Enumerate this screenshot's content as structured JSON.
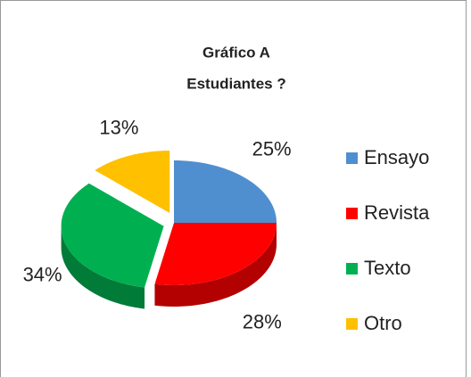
{
  "chart_data": {
    "type": "pie3d",
    "title": "Gráfico A",
    "subtitle": "Estudiantes ?",
    "categories": [
      "Ensayo",
      "Revista",
      "Texto",
      "Otro"
    ],
    "series": [
      {
        "name": "Estudiantes",
        "values": [
          25,
          28,
          34,
          13
        ],
        "value_labels": [
          "25%",
          "28%",
          "34%",
          "13%"
        ],
        "colors": [
          "#4f8fcf",
          "#ff0000",
          "#00b050",
          "#ffc000"
        ]
      }
    ],
    "legend": "right"
  }
}
